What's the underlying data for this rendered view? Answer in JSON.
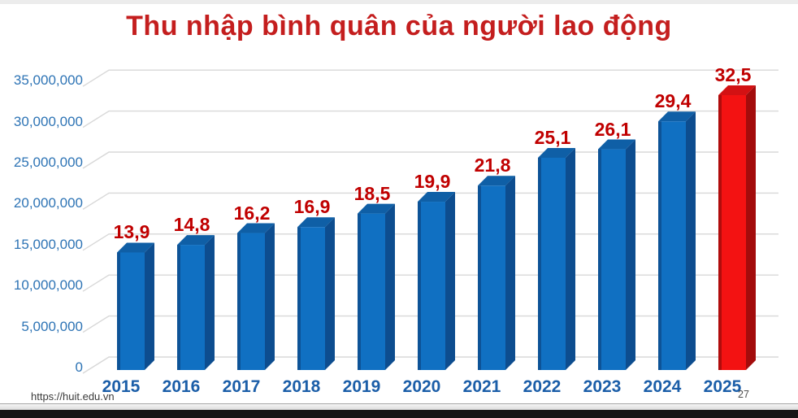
{
  "title": "Thu nhập bình quân của người lao động",
  "footer": {
    "source_url": "https://huit.edu.vn",
    "slide_number": "27"
  },
  "colors": {
    "title_red": "#c41e1e",
    "value_label_red": "#c00000",
    "axis_tick_blue": "#2e74b5",
    "year_label_blue": "#1b5ea8",
    "bar_front": "#1070c2",
    "bar_side": "#0d4d8f",
    "bar_top": "#0f5fa6",
    "highlight_front": "#f31212",
    "highlight_side": "#a30c0c",
    "highlight_top": "#d31113",
    "gridline": "#d8d8d8",
    "background": "#ffffff"
  },
  "chart_data": {
    "type": "bar",
    "style": "3d-column",
    "title": "Thu nhập bình quân của người lao động",
    "xlabel": "",
    "ylabel": "",
    "categories": [
      "2015",
      "2016",
      "2017",
      "2018",
      "2019",
      "2020",
      "2021",
      "2022",
      "2023",
      "2024",
      "2025"
    ],
    "values": [
      13.9,
      14.8,
      16.2,
      16.9,
      18.5,
      19.9,
      21.8,
      25.1,
      26.1,
      29.4,
      32.5
    ],
    "value_labels": [
      "13,9",
      "14,8",
      "16,2",
      "16,9",
      "18,5",
      "19,9",
      "21,8",
      "25,1",
      "26,1",
      "29,4",
      "32,5"
    ],
    "values_unit_scale": 1000000,
    "y_ticks": [
      "0",
      "5,000,000",
      "10,000,000",
      "15,000,000",
      "20,000,000",
      "25,000,000",
      "30,000,000",
      "35,000,000"
    ],
    "ylim": [
      0,
      35000000
    ],
    "grid": "horizontal",
    "legend": "none",
    "highlight_index": 10
  }
}
